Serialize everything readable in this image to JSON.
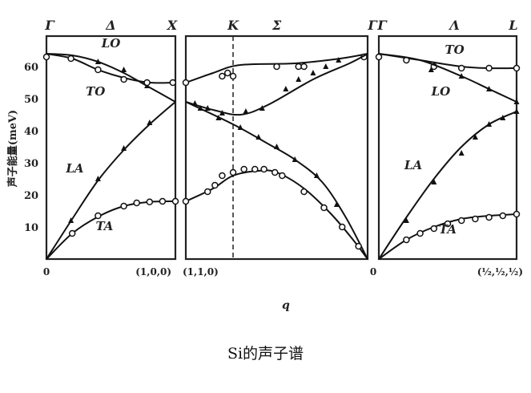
{
  "caption": "Si的声子谱",
  "chart_data": {
    "type": "line",
    "ylabel": "声子能量(meV)",
    "xlabel": "q",
    "ylim": [
      0,
      66
    ],
    "yticks": [
      "10",
      "20",
      "30",
      "40",
      "50",
      "60"
    ],
    "ytick_values": [
      10,
      20,
      30,
      40,
      50,
      60
    ],
    "grid": false,
    "panels": [
      {
        "symbols": [
          "Γ",
          "Δ",
          "X"
        ],
        "xtick_labels": [
          "0",
          "(1,0,0)"
        ],
        "series": [
          {
            "name": "LO",
            "marker": "triangle",
            "curve": [
              [
                0,
                64
              ],
              [
                0.2,
                63.5
              ],
              [
                0.4,
                61.5
              ],
              [
                0.6,
                58
              ],
              [
                0.8,
                53.5
              ],
              [
                1,
                49
              ]
            ],
            "points": [
              [
                0.4,
                61.5
              ],
              [
                0.6,
                59
              ],
              [
                0.78,
                54
              ]
            ]
          },
          {
            "name": "TO",
            "marker": "circle",
            "curve": [
              [
                0,
                64
              ],
              [
                0.2,
                62.5
              ],
              [
                0.4,
                59
              ],
              [
                0.6,
                56.5
              ],
              [
                0.8,
                55
              ],
              [
                1,
                55
              ]
            ],
            "points": [
              [
                0,
                63
              ],
              [
                0.19,
                62.5
              ],
              [
                0.4,
                59
              ],
              [
                0.6,
                56
              ],
              [
                0.78,
                55
              ],
              [
                0.98,
                55
              ]
            ]
          },
          {
            "name": "LA",
            "marker": "triangle",
            "curve": [
              [
                0,
                0
              ],
              [
                0.2,
                12.5
              ],
              [
                0.4,
                24.5
              ],
              [
                0.6,
                34
              ],
              [
                0.8,
                42
              ],
              [
                1,
                49
              ]
            ],
            "points": [
              [
                0.19,
                12
              ],
              [
                0.4,
                25
              ],
              [
                0.6,
                34.5
              ],
              [
                0.8,
                42.5
              ]
            ]
          },
          {
            "name": "TA",
            "marker": "circle",
            "curve": [
              [
                0,
                0
              ],
              [
                0.2,
                8
              ],
              [
                0.4,
                13.2
              ],
              [
                0.6,
                16.5
              ],
              [
                0.8,
                17.8
              ],
              [
                1,
                18
              ]
            ],
            "points": [
              [
                0.2,
                8
              ],
              [
                0.4,
                13.5
              ],
              [
                0.6,
                16.5
              ],
              [
                0.7,
                17.5
              ],
              [
                0.8,
                17.8
              ],
              [
                0.9,
                18
              ],
              [
                1,
                18
              ]
            ]
          }
        ]
      },
      {
        "symbols": [
          "K",
          "Σ",
          "Γ"
        ],
        "k_position": 0.26,
        "xtick_labels": [
          "(1,1,0)"
        ],
        "series": [
          {
            "marker": "circle",
            "curve": [
              [
                0,
                55
              ],
              [
                0.15,
                58
              ],
              [
                0.3,
                60.5
              ],
              [
                0.6,
                61
              ],
              [
                0.85,
                62.5
              ],
              [
                1,
                64
              ]
            ],
            "points": [
              [
                0,
                55
              ],
              [
                0.2,
                57
              ],
              [
                0.23,
                58
              ],
              [
                0.26,
                57
              ],
              [
                0.5,
                60
              ],
              [
                0.62,
                60
              ],
              [
                0.65,
                60
              ],
              [
                0.98,
                63
              ]
            ]
          },
          {
            "marker": "triangle",
            "curve": [
              [
                0,
                49
              ],
              [
                0.15,
                46.5
              ],
              [
                0.3,
                45
              ],
              [
                0.45,
                48
              ],
              [
                0.7,
                56
              ],
              [
                0.9,
                61
              ],
              [
                1,
                64
              ]
            ],
            "points": [
              [
                0.05,
                48.5
              ],
              [
                0.12,
                47
              ],
              [
                0.2,
                45.5
              ],
              [
                0.33,
                46
              ],
              [
                0.42,
                47
              ],
              [
                0.55,
                53
              ],
              [
                0.62,
                56
              ],
              [
                0.7,
                58
              ],
              [
                0.77,
                60
              ],
              [
                0.84,
                62
              ]
            ]
          },
          {
            "marker": "triangle",
            "curve": [
              [
                0,
                49
              ],
              [
                0.26,
                42
              ],
              [
                0.45,
                36
              ],
              [
                0.6,
                31
              ],
              [
                0.75,
                24
              ],
              [
                0.88,
                13
              ],
              [
                1,
                0
              ]
            ],
            "points": [
              [
                0.08,
                47
              ],
              [
                0.18,
                44
              ],
              [
                0.3,
                41
              ],
              [
                0.4,
                38
              ],
              [
                0.5,
                35
              ],
              [
                0.6,
                31
              ],
              [
                0.72,
                26
              ],
              [
                0.83,
                17
              ]
            ]
          },
          {
            "marker": "circle",
            "curve": [
              [
                0,
                18
              ],
              [
                0.15,
                22
              ],
              [
                0.26,
                26
              ],
              [
                0.4,
                27.5
              ],
              [
                0.5,
                27
              ],
              [
                0.65,
                22
              ],
              [
                0.8,
                14
              ],
              [
                0.92,
                6
              ],
              [
                1,
                0
              ]
            ],
            "points": [
              [
                0,
                18
              ],
              [
                0.12,
                21
              ],
              [
                0.16,
                23
              ],
              [
                0.2,
                26
              ],
              [
                0.26,
                27
              ],
              [
                0.32,
                28
              ],
              [
                0.38,
                28
              ],
              [
                0.43,
                28
              ],
              [
                0.49,
                27
              ],
              [
                0.53,
                26
              ],
              [
                0.65,
                21
              ],
              [
                0.76,
                16
              ],
              [
                0.86,
                10
              ],
              [
                0.95,
                4
              ]
            ]
          }
        ]
      },
      {
        "symbols": [
          "Γ",
          "Λ",
          "L"
        ],
        "xtick_labels": [
          "0",
          "(½,½,½)"
        ],
        "series": [
          {
            "name": "TO",
            "marker": "circle",
            "curve": [
              [
                0,
                64
              ],
              [
                0.3,
                62
              ],
              [
                0.6,
                60
              ],
              [
                0.8,
                59.5
              ],
              [
                1,
                59.5
              ]
            ],
            "points": [
              [
                0,
                63
              ],
              [
                0.2,
                62
              ],
              [
                0.4,
                60
              ],
              [
                0.6,
                59.5
              ],
              [
                0.8,
                59.5
              ],
              [
                1,
                59.5
              ]
            ]
          },
          {
            "name": "LO",
            "marker": "triangle",
            "curve": [
              [
                0,
                64
              ],
              [
                0.3,
                62
              ],
              [
                0.6,
                57
              ],
              [
                0.8,
                53
              ],
              [
                1,
                49
              ]
            ],
            "points": [
              [
                0.38,
                59
              ],
              [
                0.6,
                57
              ],
              [
                0.8,
                53
              ],
              [
                1,
                49
              ]
            ]
          },
          {
            "name": "LA",
            "marker": "triangle",
            "curve": [
              [
                0,
                0
              ],
              [
                0.2,
                13
              ],
              [
                0.4,
                25
              ],
              [
                0.6,
                35
              ],
              [
                0.8,
                42
              ],
              [
                1,
                46
              ]
            ],
            "points": [
              [
                0.2,
                12
              ],
              [
                0.4,
                24
              ],
              [
                0.6,
                33
              ],
              [
                0.7,
                38
              ],
              [
                0.8,
                42
              ],
              [
                0.9,
                44
              ],
              [
                1,
                46
              ]
            ]
          },
          {
            "name": "TA",
            "marker": "circle",
            "curve": [
              [
                0,
                0
              ],
              [
                0.2,
                6
              ],
              [
                0.4,
                10
              ],
              [
                0.6,
                12.5
              ],
              [
                0.8,
                13.5
              ],
              [
                1,
                14
              ]
            ],
            "points": [
              [
                0.2,
                6
              ],
              [
                0.3,
                8
              ],
              [
                0.4,
                9.5
              ],
              [
                0.5,
                11
              ],
              [
                0.6,
                12
              ],
              [
                0.7,
                12.5
              ],
              [
                0.8,
                13
              ],
              [
                0.9,
                13.5
              ],
              [
                1,
                14
              ]
            ]
          }
        ]
      }
    ]
  }
}
